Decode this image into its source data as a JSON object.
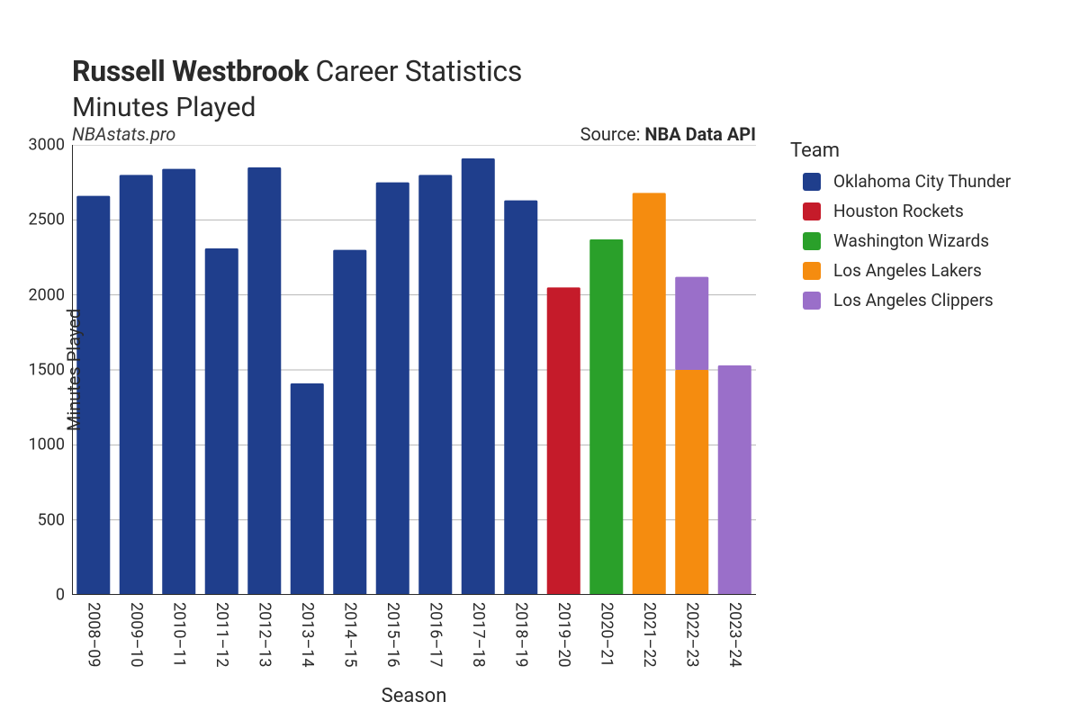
{
  "title": {
    "bold": "Russell Westbrook",
    "rest": " Career Statistics",
    "subtitle": "Minutes Played"
  },
  "watermark": "NBAstats.pro",
  "source_prefix": "Source: ",
  "source_bold": "NBA Data API",
  "axis": {
    "xlabel": "Season",
    "ylabel": "Minutes Played",
    "ylim": [
      0,
      3000
    ],
    "yticks": [
      0,
      500,
      1000,
      1500,
      2000,
      2500,
      3000
    ],
    "grid_color": "#b6b6b6",
    "grid_width": 1,
    "spine_color": "#2a2a2a",
    "spine_width": 2,
    "tick_fontsize": 18,
    "axis_label_fontsize": 20
  },
  "teams": {
    "okc": {
      "label": "Oklahoma City Thunder",
      "color": "#1f3e8c"
    },
    "hou": {
      "label": "Houston Rockets",
      "color": "#c51b2a"
    },
    "was": {
      "label": "Washington Wizards",
      "color": "#2aa02a"
    },
    "lal": {
      "label": "Los Angeles Lakers",
      "color": "#f58c0f"
    },
    "lac": {
      "label": "Los Angeles Clippers",
      "color": "#9a6fc9"
    }
  },
  "legend": {
    "title": "Team",
    "order": [
      "okc",
      "hou",
      "was",
      "lal",
      "lac"
    ]
  },
  "chart": {
    "type": "stacked-bar",
    "bar_width": 0.78,
    "background_color": "#ffffff",
    "seasons": [
      {
        "season": "2008–09",
        "stacks": [
          {
            "team": "okc",
            "value": 2660
          }
        ]
      },
      {
        "season": "2009–10",
        "stacks": [
          {
            "team": "okc",
            "value": 2800
          }
        ]
      },
      {
        "season": "2010–11",
        "stacks": [
          {
            "team": "okc",
            "value": 2840
          }
        ]
      },
      {
        "season": "2011–12",
        "stacks": [
          {
            "team": "okc",
            "value": 2310
          }
        ]
      },
      {
        "season": "2012–13",
        "stacks": [
          {
            "team": "okc",
            "value": 2850
          }
        ]
      },
      {
        "season": "2013–14",
        "stacks": [
          {
            "team": "okc",
            "value": 1410
          }
        ]
      },
      {
        "season": "2014–15",
        "stacks": [
          {
            "team": "okc",
            "value": 2300
          }
        ]
      },
      {
        "season": "2015–16",
        "stacks": [
          {
            "team": "okc",
            "value": 2750
          }
        ]
      },
      {
        "season": "2016–17",
        "stacks": [
          {
            "team": "okc",
            "value": 2800
          }
        ]
      },
      {
        "season": "2017–18",
        "stacks": [
          {
            "team": "okc",
            "value": 2910
          }
        ]
      },
      {
        "season": "2018–19",
        "stacks": [
          {
            "team": "okc",
            "value": 2630
          }
        ]
      },
      {
        "season": "2019–20",
        "stacks": [
          {
            "team": "hou",
            "value": 2050
          }
        ]
      },
      {
        "season": "2020–21",
        "stacks": [
          {
            "team": "was",
            "value": 2370
          }
        ]
      },
      {
        "season": "2021–22",
        "stacks": [
          {
            "team": "lal",
            "value": 2680
          }
        ]
      },
      {
        "season": "2022–23",
        "stacks": [
          {
            "team": "lal",
            "value": 1500
          },
          {
            "team": "lac",
            "value": 620
          }
        ]
      },
      {
        "season": "2023–24",
        "stacks": [
          {
            "team": "lac",
            "value": 1530
          }
        ]
      }
    ]
  }
}
